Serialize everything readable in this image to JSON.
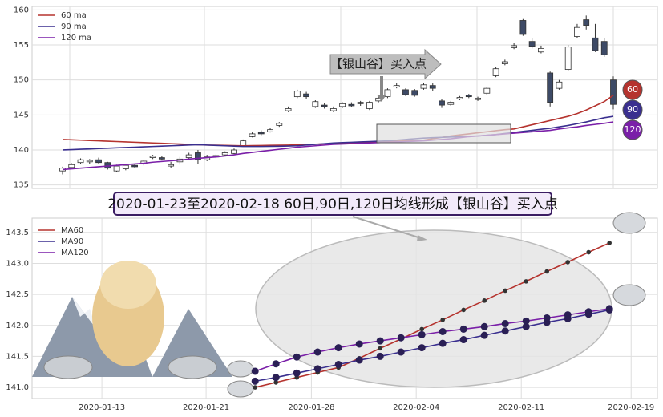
{
  "chart_data": [
    {
      "type": "candlestick",
      "open": [
        137.0,
        137.5,
        138.2,
        138.3,
        138.6,
        138.2,
        137.0,
        137.3,
        137.8,
        138.0,
        138.9,
        138.9,
        137.7,
        138.3,
        138.9,
        139.6,
        138.6,
        139.0,
        139.3,
        139.5,
        140.6,
        141.9,
        142.5,
        142.6,
        143.5,
        145.6,
        147.6,
        148.0,
        146.2,
        146.4,
        145.6,
        146.2,
        146.5,
        146.6,
        145.9,
        147.0,
        147.6,
        149.0,
        148.6,
        148.5,
        148.8,
        149.2,
        147.0,
        146.5,
        147.3,
        147.8,
        147.2,
        148.1,
        150.6,
        152.3,
        154.6,
        158.5,
        155.5,
        154.0,
        151.0,
        148.8,
        151.5,
        156.2,
        158.6,
        156.0,
        155.5,
        150.0
      ],
      "high": [
        137.6,
        138.1,
        138.8,
        138.7,
        138.9,
        138.3,
        137.9,
        138.0,
        138.0,
        138.6,
        139.3,
        139.1,
        138.3,
        139.0,
        139.6,
        140.0,
        139.3,
        139.4,
        139.8,
        140.2,
        141.5,
        142.5,
        142.8,
        143.1,
        144.0,
        146.2,
        148.6,
        148.3,
        147.1,
        146.7,
        146.2,
        146.8,
        146.8,
        147.0,
        147.0,
        147.6,
        148.8,
        149.6,
        148.8,
        148.7,
        149.6,
        149.5,
        147.3,
        147.0,
        147.7,
        148.0,
        147.6,
        149.0,
        151.8,
        152.9,
        155.3,
        158.7,
        156.0,
        154.9,
        151.2,
        150.0,
        155.0,
        158.0,
        159.2,
        158.0,
        156.0,
        150.5
      ],
      "low": [
        136.5,
        137.3,
        138.0,
        138.0,
        138.0,
        137.2,
        136.8,
        137.1,
        137.4,
        137.8,
        138.7,
        138.5,
        137.4,
        137.9,
        138.6,
        138.0,
        138.4,
        138.8,
        139.1,
        139.4,
        140.5,
        141.8,
        142.1,
        142.5,
        143.3,
        145.4,
        147.4,
        147.3,
        146.0,
        145.9,
        145.4,
        146.0,
        146.1,
        146.3,
        145.7,
        146.8,
        147.4,
        148.8,
        147.7,
        147.6,
        148.6,
        148.4,
        146.0,
        146.3,
        147.1,
        147.4,
        147.0,
        147.9,
        150.4,
        152.1,
        154.4,
        156.3,
        154.5,
        153.8,
        146.2,
        148.6,
        151.3,
        156.0,
        157.2,
        154.0,
        153.3,
        145.8
      ],
      "close": [
        137.4,
        137.9,
        138.6,
        138.5,
        138.2,
        137.4,
        137.7,
        137.8,
        137.6,
        138.4,
        139.1,
        138.7,
        137.9,
        138.7,
        139.3,
        138.6,
        139.0,
        139.2,
        139.6,
        140.0,
        141.3,
        142.3,
        142.3,
        142.9,
        143.8,
        145.9,
        148.4,
        147.6,
        146.9,
        146.2,
        145.9,
        146.6,
        146.3,
        146.8,
        146.8,
        147.4,
        148.6,
        149.2,
        147.9,
        147.8,
        149.3,
        148.8,
        146.4,
        146.8,
        147.5,
        147.6,
        147.4,
        148.8,
        151.6,
        152.6,
        154.9,
        156.5,
        154.8,
        154.5,
        146.8,
        149.7,
        154.7,
        157.5,
        157.8,
        154.2,
        153.6,
        146.5
      ],
      "up_color": "#ffffff",
      "down_color": "#3d4a66",
      "series": [
        {
          "name": "60 ma",
          "color": "#b5332e",
          "values": [
            141.5,
            141.45,
            141.4,
            141.35,
            141.3,
            141.25,
            141.2,
            141.15,
            141.1,
            141.05,
            141.0,
            140.95,
            140.9,
            140.85,
            140.8,
            140.75,
            140.7,
            140.68,
            140.65,
            140.62,
            140.6,
            140.62,
            140.64,
            140.66,
            140.68,
            140.7,
            140.74,
            140.78,
            140.82,
            140.86,
            140.9,
            140.95,
            141.0,
            141.05,
            141.1,
            141.15,
            141.2,
            141.25,
            141.3,
            141.35,
            141.4,
            141.6,
            141.8,
            142.0,
            142.15,
            142.3,
            142.45,
            142.6,
            142.75,
            142.9,
            143.0,
            143.3,
            143.6,
            143.9,
            144.2,
            144.5,
            144.8,
            145.2,
            145.7,
            146.3,
            146.9,
            147.8
          ]
        },
        {
          "name": "90 ma",
          "color": "#3a2f8f",
          "values": [
            140.0,
            140.05,
            140.1,
            140.15,
            140.2,
            140.25,
            140.3,
            140.35,
            140.4,
            140.45,
            140.5,
            140.55,
            140.6,
            140.65,
            140.7,
            140.75,
            140.7,
            140.65,
            140.6,
            140.55,
            140.5,
            140.5,
            140.5,
            140.52,
            140.54,
            140.56,
            140.6,
            140.7,
            140.8,
            140.9,
            141.0,
            141.05,
            141.1,
            141.15,
            141.2,
            141.25,
            141.3,
            141.4,
            141.5,
            141.6,
            141.7,
            141.75,
            141.8,
            141.85,
            141.9,
            141.95,
            142.0,
            142.1,
            142.2,
            142.35,
            142.5,
            142.65,
            142.8,
            142.95,
            143.1,
            143.3,
            143.5,
            143.75,
            144.0,
            144.3,
            144.6,
            144.8
          ]
        },
        {
          "name": "120 ma",
          "color": "#7a1fa8",
          "values": [
            137.2,
            137.3,
            137.4,
            137.5,
            137.6,
            137.7,
            137.8,
            137.9,
            138.0,
            138.1,
            138.25,
            138.35,
            138.45,
            138.55,
            138.7,
            138.8,
            138.9,
            139.0,
            139.15,
            139.3,
            139.5,
            139.65,
            139.8,
            139.95,
            140.1,
            140.25,
            140.4,
            140.5,
            140.6,
            140.7,
            140.8,
            140.85,
            140.9,
            140.95,
            141.0,
            141.05,
            141.1,
            141.15,
            141.2,
            141.25,
            141.3,
            141.4,
            141.5,
            141.6,
            141.75,
            141.9,
            142.0,
            142.1,
            142.2,
            142.3,
            142.4,
            142.5,
            142.6,
            142.7,
            142.8,
            143.0,
            143.15,
            143.3,
            143.5,
            143.65,
            143.8,
            144.0
          ]
        }
      ],
      "end_labels": [
        "60",
        "90",
        "120"
      ],
      "annotation": "【银山谷】买入点",
      "ylim": [
        134.5,
        160.5
      ],
      "yticks": [
        135,
        140,
        145,
        150,
        155,
        160
      ],
      "grid": true,
      "legend": "upper left"
    },
    {
      "type": "line",
      "title": "2020-01-23至2020-02-18 60日,90日,120日均线形成【银山谷】买入点",
      "series": [
        {
          "name": "MA60",
          "color": "#b5332e",
          "values": [
            141.0,
            141.08,
            141.16,
            141.24,
            141.32,
            141.47,
            141.63,
            141.78,
            141.94,
            142.09,
            142.25,
            142.4,
            142.56,
            142.71,
            142.87,
            143.02,
            143.18,
            143.33
          ]
        },
        {
          "name": "MA90",
          "color": "#3a2f8f",
          "values": [
            141.1,
            141.16,
            141.23,
            141.3,
            141.37,
            141.44,
            141.5,
            141.57,
            141.64,
            141.71,
            141.77,
            141.84,
            141.91,
            141.98,
            142.05,
            142.11,
            142.18,
            142.25
          ]
        },
        {
          "name": "MA120",
          "color": "#7a1fa8",
          "values": [
            141.26,
            141.38,
            141.49,
            141.57,
            141.64,
            141.7,
            141.75,
            141.8,
            141.85,
            141.9,
            141.94,
            141.98,
            142.03,
            142.07,
            142.12,
            142.17,
            142.22,
            142.27
          ]
        }
      ],
      "xlim": [
        -10.7,
        19.3
      ],
      "xticks": [
        {
          "value": -7.35,
          "label": "2020-01-13"
        },
        {
          "value": -2.35,
          "label": "2020-01-21"
        },
        {
          "value": 2.7,
          "label": "2020-01-28"
        },
        {
          "value": 7.73,
          "label": "2020-02-04"
        },
        {
          "value": 12.77,
          "label": "2020-02-11"
        },
        {
          "value": 18.04,
          "label": "2020-02-19"
        }
      ],
      "ylim": [
        140.82,
        143.73
      ],
      "yticks": [
        {
          "value": 141.0,
          "label": "141.0"
        },
        {
          "value": 141.5,
          "label": "141.5"
        },
        {
          "value": 142.0,
          "label": "142.0"
        },
        {
          "value": 142.5,
          "label": "142.5"
        },
        {
          "value": 143.0,
          "label": "143.0"
        },
        {
          "value": 143.5,
          "label": "143.5"
        }
      ],
      "grid": true,
      "legend": "upper left"
    }
  ]
}
